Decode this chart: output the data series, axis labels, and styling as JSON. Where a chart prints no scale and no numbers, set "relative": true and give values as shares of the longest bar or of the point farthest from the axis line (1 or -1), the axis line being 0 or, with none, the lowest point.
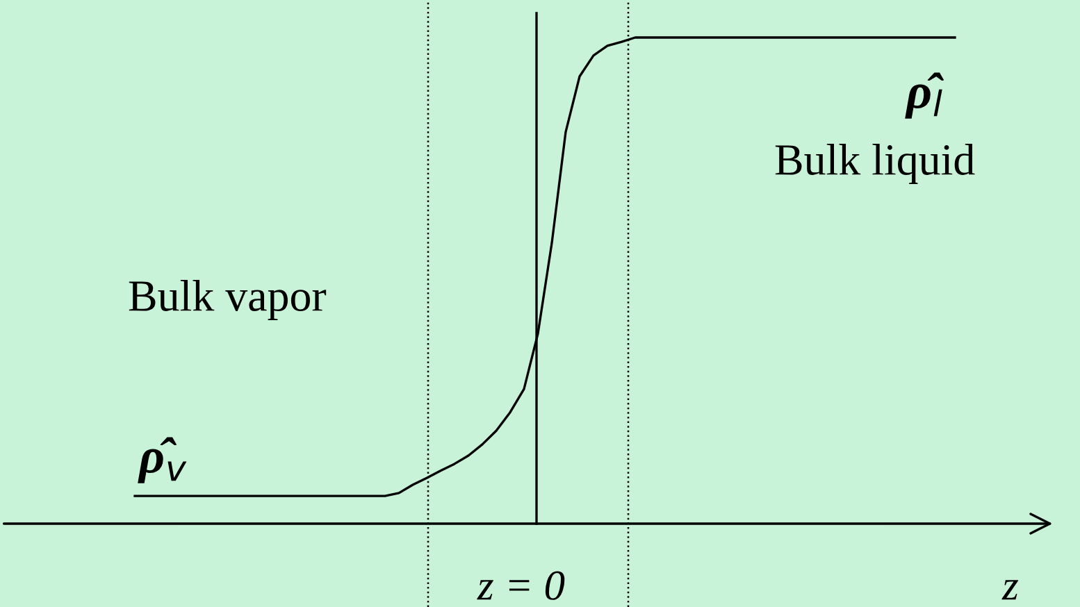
{
  "chart_data": {
    "type": "line",
    "relative": true,
    "xlabel": "z",
    "categories": [
      null,
      null,
      null,
      null,
      null,
      null,
      null,
      null,
      null,
      null,
      null,
      null,
      null,
      null,
      null,
      null,
      null,
      null,
      null,
      null,
      null,
      null,
      null,
      null,
      null,
      null,
      null,
      null,
      null,
      null,
      null,
      null,
      null,
      null,
      null,
      null,
      null,
      null,
      null,
      null,
      null,
      null,
      null,
      null,
      null,
      null,
      null,
      null,
      null,
      null,
      null,
      null,
      null,
      null,
      null,
      null,
      null,
      null,
      null,
      null
    ],
    "series": [
      {
        "color": "#000000",
        "values": [
          0.057,
          0.057,
          0.057,
          0.057,
          0.057,
          0.057,
          0.057,
          0.057,
          0.057,
          0.057,
          0.057,
          0.057,
          0.057,
          0.057,
          0.057,
          0.057,
          0.057,
          0.057,
          0.057,
          0.063,
          0.08,
          0.094,
          0.109,
          0.123,
          0.14,
          0.163,
          0.191,
          0.229,
          0.277,
          0.391,
          0.577,
          0.806,
          0.92,
          0.963,
          0.983,
          0.991,
          1,
          1,
          1,
          1,
          1,
          1,
          1,
          1,
          1,
          1,
          1,
          1,
          1,
          1,
          1,
          1,
          1,
          1,
          1,
          1,
          1,
          1,
          1,
          1
        ]
      }
    ],
    "annotations": [
      "ρ̂$_{v}$",
      "ρ̂$_{l}$",
      "Bulk vapor",
      "Bulk liquid",
      "z = 0"
    ],
    "grid": false,
    "legend": false,
    "marker": "none",
    "line_style": "solid"
  }
}
